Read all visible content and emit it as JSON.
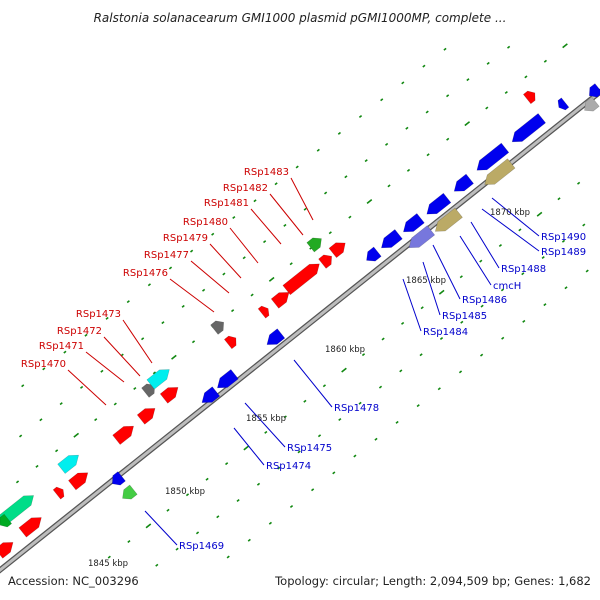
{
  "title": "Ralstonia solanacearum GMI1000 plasmid pGMI1000MP, complete ...",
  "footer": {
    "accession": "Accession: NC_003296",
    "summary": "Topology: circular; Length: 2,094,509 bp; Genes: 1,682"
  },
  "colors": {
    "forward_label": "#cc0000",
    "reverse_label": "#0000cc",
    "forward_gene": "#ff0000",
    "reverse_gene": "#0000ee",
    "tick": "#118811",
    "backbone": "#9a9a9a"
  },
  "scale_labels": [
    "1845 kbp",
    "1850 kbp",
    "1855 kbp",
    "1860 kbp",
    "1865 kbp",
    "1870 kbp"
  ],
  "forward_labels": [
    "RSp1483",
    "RSp1482",
    "RSp1481",
    "RSp1480",
    "RSp1479",
    "RSp1477",
    "RSp1476",
    "RSp1473",
    "RSp1472",
    "RSp1471",
    "RSp1470"
  ],
  "reverse_labels": [
    "RSp1490",
    "RSp1489",
    "RSp1488",
    "cmcH",
    "RSp1486",
    "RSp1485",
    "RSp1484",
    "RSp1478",
    "RSp1475",
    "RSp1474",
    "RSp1469"
  ]
}
